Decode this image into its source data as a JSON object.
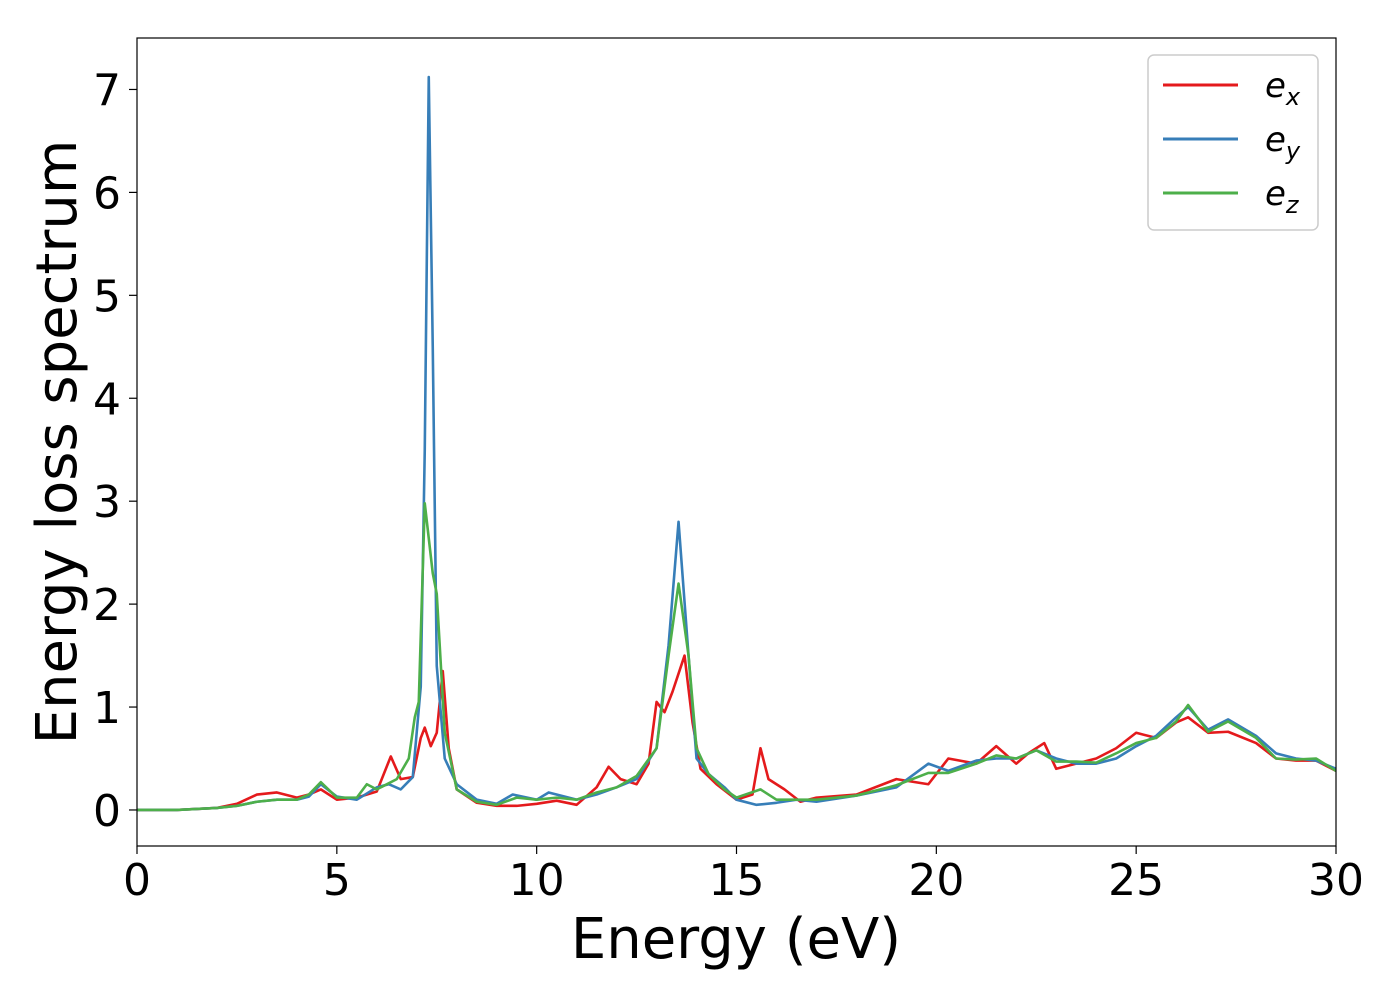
{
  "chart_data": {
    "type": "line",
    "title": "",
    "xlabel": "Energy (eV)",
    "ylabel": "Energy loss spectrum",
    "xlim": [
      0,
      30
    ],
    "ylim": [
      -0.35,
      7.5
    ],
    "xticks": [
      0,
      5,
      10,
      15,
      20,
      25,
      30
    ],
    "yticks": [
      0,
      1,
      2,
      3,
      4,
      5,
      6,
      7
    ],
    "grid": false,
    "legend_position": "top-right",
    "series": [
      {
        "name": "e_x",
        "label_base": "e",
        "label_sub": "x",
        "color": "#e41a1c",
        "points": [
          [
            0,
            0
          ],
          [
            1,
            0
          ],
          [
            2,
            0.02
          ],
          [
            2.5,
            0.06
          ],
          [
            3,
            0.15
          ],
          [
            3.5,
            0.17
          ],
          [
            4,
            0.12
          ],
          [
            4.3,
            0.15
          ],
          [
            4.6,
            0.2
          ],
          [
            5,
            0.1
          ],
          [
            5.5,
            0.12
          ],
          [
            6,
            0.18
          ],
          [
            6.35,
            0.52
          ],
          [
            6.6,
            0.3
          ],
          [
            6.9,
            0.32
          ],
          [
            7.1,
            0.7
          ],
          [
            7.2,
            0.8
          ],
          [
            7.35,
            0.62
          ],
          [
            7.5,
            0.75
          ],
          [
            7.65,
            1.35
          ],
          [
            7.8,
            0.6
          ],
          [
            8,
            0.2
          ],
          [
            8.5,
            0.07
          ],
          [
            9,
            0.04
          ],
          [
            9.5,
            0.04
          ],
          [
            10,
            0.06
          ],
          [
            10.5,
            0.09
          ],
          [
            11,
            0.05
          ],
          [
            11.5,
            0.22
          ],
          [
            11.8,
            0.42
          ],
          [
            12.1,
            0.3
          ],
          [
            12.5,
            0.25
          ],
          [
            12.8,
            0.45
          ],
          [
            13,
            1.05
          ],
          [
            13.2,
            0.95
          ],
          [
            13.4,
            1.15
          ],
          [
            13.7,
            1.5
          ],
          [
            13.9,
            0.85
          ],
          [
            14.1,
            0.4
          ],
          [
            14.5,
            0.25
          ],
          [
            15,
            0.1
          ],
          [
            15.4,
            0.15
          ],
          [
            15.6,
            0.6
          ],
          [
            15.8,
            0.3
          ],
          [
            16.2,
            0.2
          ],
          [
            16.6,
            0.08
          ],
          [
            17,
            0.12
          ],
          [
            18,
            0.15
          ],
          [
            19,
            0.3
          ],
          [
            19.8,
            0.25
          ],
          [
            20.3,
            0.5
          ],
          [
            21,
            0.45
          ],
          [
            21.5,
            0.62
          ],
          [
            22,
            0.45
          ],
          [
            22.3,
            0.55
          ],
          [
            22.7,
            0.65
          ],
          [
            23,
            0.4
          ],
          [
            23.5,
            0.45
          ],
          [
            24,
            0.5
          ],
          [
            24.5,
            0.6
          ],
          [
            25,
            0.75
          ],
          [
            25.5,
            0.7
          ],
          [
            26,
            0.85
          ],
          [
            26.3,
            0.9
          ],
          [
            26.8,
            0.75
          ],
          [
            27.3,
            0.76
          ],
          [
            28,
            0.65
          ],
          [
            28.5,
            0.5
          ],
          [
            29,
            0.48
          ],
          [
            29.5,
            0.48
          ],
          [
            30,
            0.38
          ]
        ]
      },
      {
        "name": "e_y",
        "label_base": "e",
        "label_sub": "y",
        "color": "#377eb8",
        "points": [
          [
            0,
            0
          ],
          [
            1,
            0
          ],
          [
            2,
            0.02
          ],
          [
            2.5,
            0.04
          ],
          [
            3,
            0.08
          ],
          [
            3.5,
            0.1
          ],
          [
            4,
            0.1
          ],
          [
            4.3,
            0.13
          ],
          [
            4.6,
            0.25
          ],
          [
            5,
            0.13
          ],
          [
            5.5,
            0.1
          ],
          [
            6,
            0.22
          ],
          [
            6.3,
            0.25
          ],
          [
            6.6,
            0.2
          ],
          [
            6.9,
            0.32
          ],
          [
            7.1,
            1.2
          ],
          [
            7.2,
            3.5
          ],
          [
            7.3,
            7.12
          ],
          [
            7.4,
            4.5
          ],
          [
            7.5,
            1.4
          ],
          [
            7.7,
            0.5
          ],
          [
            8,
            0.25
          ],
          [
            8.5,
            0.1
          ],
          [
            9,
            0.06
          ],
          [
            9.4,
            0.15
          ],
          [
            10,
            0.1
          ],
          [
            10.3,
            0.17
          ],
          [
            11,
            0.1
          ],
          [
            11.5,
            0.15
          ],
          [
            12,
            0.22
          ],
          [
            12.5,
            0.3
          ],
          [
            13,
            0.6
          ],
          [
            13.3,
            1.6
          ],
          [
            13.55,
            2.8
          ],
          [
            13.8,
            1.5
          ],
          [
            14,
            0.5
          ],
          [
            14.3,
            0.35
          ],
          [
            14.7,
            0.22
          ],
          [
            15,
            0.1
          ],
          [
            15.5,
            0.05
          ],
          [
            16,
            0.07
          ],
          [
            16.5,
            0.1
          ],
          [
            17,
            0.08
          ],
          [
            18,
            0.14
          ],
          [
            19,
            0.22
          ],
          [
            19.8,
            0.45
          ],
          [
            20.3,
            0.38
          ],
          [
            21,
            0.48
          ],
          [
            21.5,
            0.5
          ],
          [
            22,
            0.5
          ],
          [
            22.5,
            0.58
          ],
          [
            23,
            0.5
          ],
          [
            23.5,
            0.45
          ],
          [
            24,
            0.45
          ],
          [
            24.5,
            0.5
          ],
          [
            25,
            0.62
          ],
          [
            25.5,
            0.72
          ],
          [
            26,
            0.9
          ],
          [
            26.3,
            1.0
          ],
          [
            26.8,
            0.78
          ],
          [
            27.3,
            0.88
          ],
          [
            28,
            0.72
          ],
          [
            28.5,
            0.55
          ],
          [
            29,
            0.5
          ],
          [
            29.5,
            0.48
          ],
          [
            30,
            0.4
          ]
        ]
      },
      {
        "name": "e_z",
        "label_base": "e",
        "label_sub": "z",
        "color": "#4daf4a",
        "points": [
          [
            0,
            0
          ],
          [
            1,
            0
          ],
          [
            2,
            0.02
          ],
          [
            2.5,
            0.04
          ],
          [
            3,
            0.08
          ],
          [
            3.5,
            0.1
          ],
          [
            4,
            0.1
          ],
          [
            4.3,
            0.15
          ],
          [
            4.6,
            0.27
          ],
          [
            5,
            0.12
          ],
          [
            5.5,
            0.12
          ],
          [
            5.75,
            0.25
          ],
          [
            6,
            0.2
          ],
          [
            6.5,
            0.3
          ],
          [
            6.8,
            0.5
          ],
          [
            6.95,
            0.9
          ],
          [
            7.05,
            1.05
          ],
          [
            7.2,
            2.98
          ],
          [
            7.4,
            2.3
          ],
          [
            7.5,
            2.1
          ],
          [
            7.7,
            0.75
          ],
          [
            8,
            0.2
          ],
          [
            8.5,
            0.08
          ],
          [
            9,
            0.05
          ],
          [
            9.5,
            0.12
          ],
          [
            10,
            0.1
          ],
          [
            10.5,
            0.12
          ],
          [
            11,
            0.1
          ],
          [
            11.5,
            0.17
          ],
          [
            12,
            0.22
          ],
          [
            12.5,
            0.33
          ],
          [
            13,
            0.6
          ],
          [
            13.3,
            1.5
          ],
          [
            13.55,
            2.2
          ],
          [
            13.8,
            1.5
          ],
          [
            14,
            0.6
          ],
          [
            14.3,
            0.35
          ],
          [
            14.7,
            0.2
          ],
          [
            15,
            0.12
          ],
          [
            15.6,
            0.2
          ],
          [
            16,
            0.1
          ],
          [
            16.5,
            0.1
          ],
          [
            17,
            0.1
          ],
          [
            18,
            0.14
          ],
          [
            19,
            0.24
          ],
          [
            19.8,
            0.36
          ],
          [
            20.3,
            0.36
          ],
          [
            21,
            0.45
          ],
          [
            21.5,
            0.53
          ],
          [
            22,
            0.5
          ],
          [
            22.5,
            0.58
          ],
          [
            23,
            0.47
          ],
          [
            23.5,
            0.47
          ],
          [
            24,
            0.46
          ],
          [
            24.5,
            0.55
          ],
          [
            25,
            0.65
          ],
          [
            25.5,
            0.7
          ],
          [
            26,
            0.86
          ],
          [
            26.3,
            1.02
          ],
          [
            26.8,
            0.76
          ],
          [
            27.3,
            0.86
          ],
          [
            28,
            0.7
          ],
          [
            28.5,
            0.5
          ],
          [
            29,
            0.49
          ],
          [
            29.5,
            0.5
          ],
          [
            30,
            0.38
          ]
        ]
      }
    ]
  }
}
